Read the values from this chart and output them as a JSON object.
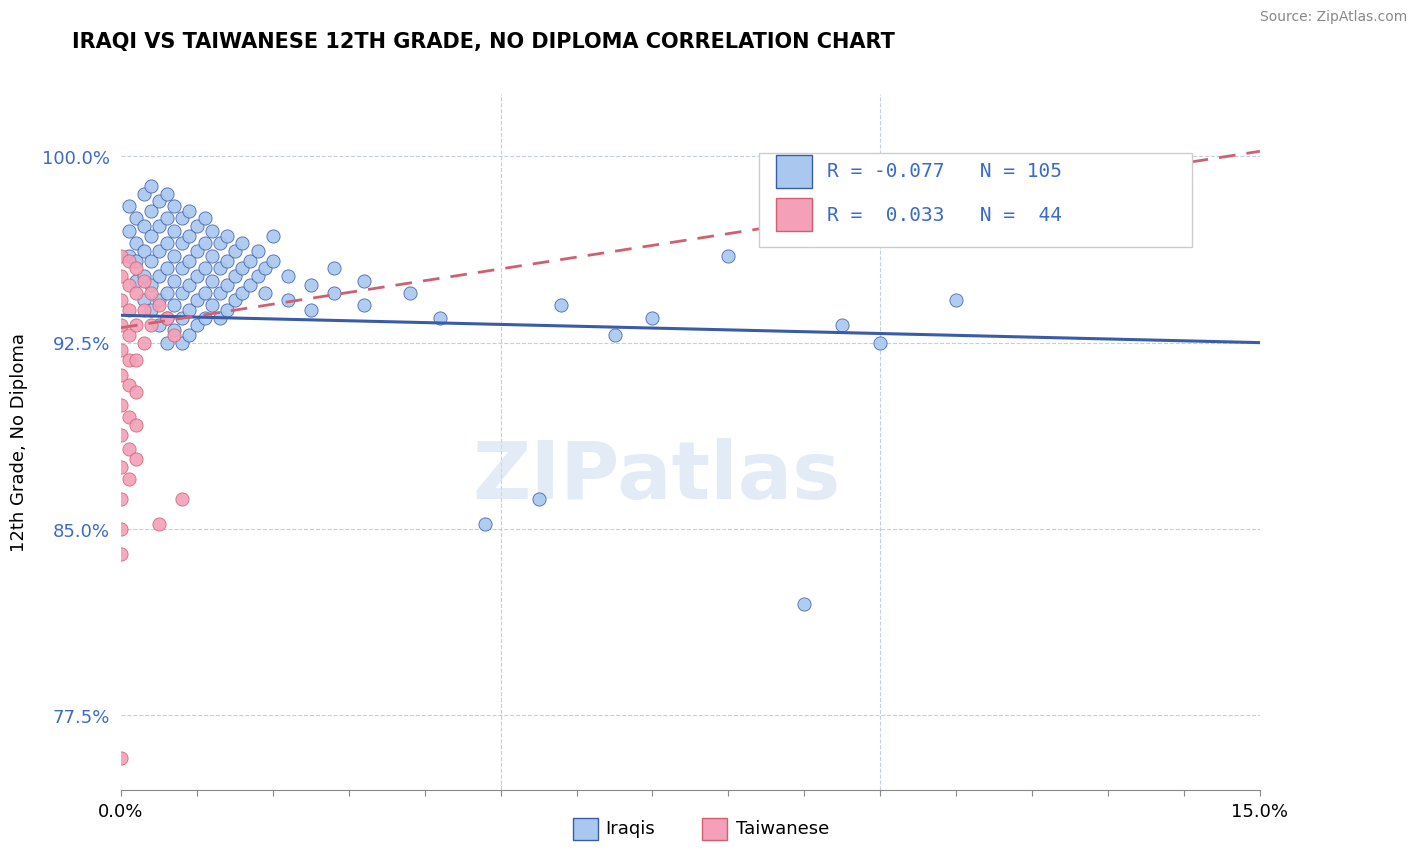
{
  "title": "IRAQI VS TAIWANESE 12TH GRADE, NO DIPLOMA CORRELATION CHART",
  "source_text": "Source: ZipAtlas.com",
  "ylabel": "12th Grade, No Diploma",
  "xlim": [
    0.0,
    0.15
  ],
  "ylim": [
    0.745,
    1.025
  ],
  "ytick_positions": [
    0.775,
    0.85,
    0.925,
    1.0
  ],
  "ytick_labels": [
    "77.5%",
    "85.0%",
    "92.5%",
    "100.0%"
  ],
  "blue_color": "#a8c8f0",
  "pink_color": "#f4a0b8",
  "trend_blue": "#3a5ca8",
  "trend_pink": "#d06070",
  "watermark": "ZIPatlas",
  "background_color": "#ffffff",
  "grid_color": "#c0d0e0",
  "legend_R_iraqi": "-0.077",
  "legend_N_iraqi": "105",
  "legend_R_taiwanese": "0.033",
  "legend_N_taiwanese": "44",
  "iraqi_trend_x0": 0.0,
  "iraqi_trend_y0": 0.936,
  "iraqi_trend_x1": 0.15,
  "iraqi_trend_y1": 0.925,
  "taiwanese_trend_x0": 0.0,
  "taiwanese_trend_y0": 0.931,
  "taiwanese_trend_x1": 0.15,
  "taiwanese_trend_y1": 1.002,
  "iraqi_points": [
    [
      0.001,
      0.98
    ],
    [
      0.001,
      0.97
    ],
    [
      0.001,
      0.96
    ],
    [
      0.002,
      0.975
    ],
    [
      0.002,
      0.965
    ],
    [
      0.002,
      0.958
    ],
    [
      0.002,
      0.95
    ],
    [
      0.003,
      0.985
    ],
    [
      0.003,
      0.972
    ],
    [
      0.003,
      0.962
    ],
    [
      0.003,
      0.952
    ],
    [
      0.003,
      0.942
    ],
    [
      0.004,
      0.988
    ],
    [
      0.004,
      0.978
    ],
    [
      0.004,
      0.968
    ],
    [
      0.004,
      0.958
    ],
    [
      0.004,
      0.948
    ],
    [
      0.004,
      0.938
    ],
    [
      0.005,
      0.982
    ],
    [
      0.005,
      0.972
    ],
    [
      0.005,
      0.962
    ],
    [
      0.005,
      0.952
    ],
    [
      0.005,
      0.942
    ],
    [
      0.005,
      0.932
    ],
    [
      0.006,
      0.985
    ],
    [
      0.006,
      0.975
    ],
    [
      0.006,
      0.965
    ],
    [
      0.006,
      0.955
    ],
    [
      0.006,
      0.945
    ],
    [
      0.006,
      0.935
    ],
    [
      0.006,
      0.925
    ],
    [
      0.007,
      0.98
    ],
    [
      0.007,
      0.97
    ],
    [
      0.007,
      0.96
    ],
    [
      0.007,
      0.95
    ],
    [
      0.007,
      0.94
    ],
    [
      0.007,
      0.93
    ],
    [
      0.008,
      0.975
    ],
    [
      0.008,
      0.965
    ],
    [
      0.008,
      0.955
    ],
    [
      0.008,
      0.945
    ],
    [
      0.008,
      0.935
    ],
    [
      0.008,
      0.925
    ],
    [
      0.009,
      0.978
    ],
    [
      0.009,
      0.968
    ],
    [
      0.009,
      0.958
    ],
    [
      0.009,
      0.948
    ],
    [
      0.009,
      0.938
    ],
    [
      0.009,
      0.928
    ],
    [
      0.01,
      0.972
    ],
    [
      0.01,
      0.962
    ],
    [
      0.01,
      0.952
    ],
    [
      0.01,
      0.942
    ],
    [
      0.01,
      0.932
    ],
    [
      0.011,
      0.975
    ],
    [
      0.011,
      0.965
    ],
    [
      0.011,
      0.955
    ],
    [
      0.011,
      0.945
    ],
    [
      0.011,
      0.935
    ],
    [
      0.012,
      0.97
    ],
    [
      0.012,
      0.96
    ],
    [
      0.012,
      0.95
    ],
    [
      0.012,
      0.94
    ],
    [
      0.013,
      0.965
    ],
    [
      0.013,
      0.955
    ],
    [
      0.013,
      0.945
    ],
    [
      0.013,
      0.935
    ],
    [
      0.014,
      0.968
    ],
    [
      0.014,
      0.958
    ],
    [
      0.014,
      0.948
    ],
    [
      0.014,
      0.938
    ],
    [
      0.015,
      0.962
    ],
    [
      0.015,
      0.952
    ],
    [
      0.015,
      0.942
    ],
    [
      0.016,
      0.965
    ],
    [
      0.016,
      0.955
    ],
    [
      0.016,
      0.945
    ],
    [
      0.017,
      0.958
    ],
    [
      0.017,
      0.948
    ],
    [
      0.018,
      0.962
    ],
    [
      0.018,
      0.952
    ],
    [
      0.019,
      0.955
    ],
    [
      0.019,
      0.945
    ],
    [
      0.02,
      0.968
    ],
    [
      0.02,
      0.958
    ],
    [
      0.022,
      0.952
    ],
    [
      0.022,
      0.942
    ],
    [
      0.025,
      0.948
    ],
    [
      0.025,
      0.938
    ],
    [
      0.028,
      0.945
    ],
    [
      0.028,
      0.955
    ],
    [
      0.032,
      0.94
    ],
    [
      0.032,
      0.95
    ],
    [
      0.038,
      0.945
    ],
    [
      0.042,
      0.935
    ],
    [
      0.048,
      0.852
    ],
    [
      0.055,
      0.862
    ],
    [
      0.058,
      0.94
    ],
    [
      0.065,
      0.928
    ],
    [
      0.07,
      0.935
    ],
    [
      0.08,
      0.96
    ],
    [
      0.09,
      0.82
    ],
    [
      0.095,
      0.932
    ],
    [
      0.1,
      0.925
    ],
    [
      0.11,
      0.942
    ]
  ],
  "taiwanese_points": [
    [
      0.0,
      0.96
    ],
    [
      0.0,
      0.952
    ],
    [
      0.0,
      0.942
    ],
    [
      0.0,
      0.932
    ],
    [
      0.0,
      0.922
    ],
    [
      0.0,
      0.912
    ],
    [
      0.0,
      0.9
    ],
    [
      0.0,
      0.888
    ],
    [
      0.0,
      0.875
    ],
    [
      0.0,
      0.862
    ],
    [
      0.0,
      0.85
    ],
    [
      0.0,
      0.84
    ],
    [
      0.001,
      0.958
    ],
    [
      0.001,
      0.948
    ],
    [
      0.001,
      0.938
    ],
    [
      0.001,
      0.928
    ],
    [
      0.001,
      0.918
    ],
    [
      0.001,
      0.908
    ],
    [
      0.001,
      0.895
    ],
    [
      0.001,
      0.882
    ],
    [
      0.001,
      0.87
    ],
    [
      0.002,
      0.955
    ],
    [
      0.002,
      0.945
    ],
    [
      0.002,
      0.932
    ],
    [
      0.002,
      0.918
    ],
    [
      0.002,
      0.905
    ],
    [
      0.002,
      0.892
    ],
    [
      0.002,
      0.878
    ],
    [
      0.003,
      0.95
    ],
    [
      0.003,
      0.938
    ],
    [
      0.003,
      0.925
    ],
    [
      0.004,
      0.945
    ],
    [
      0.004,
      0.932
    ],
    [
      0.005,
      0.94
    ],
    [
      0.005,
      0.852
    ],
    [
      0.006,
      0.935
    ],
    [
      0.007,
      0.928
    ],
    [
      0.008,
      0.862
    ],
    [
      0.0,
      0.758
    ]
  ]
}
